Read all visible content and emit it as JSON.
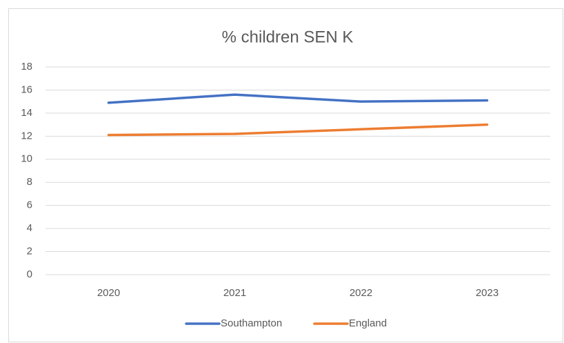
{
  "chart_data": {
    "type": "line",
    "title": "% children SEN K",
    "categories": [
      "2020",
      "2021",
      "2022",
      "2023"
    ],
    "series": [
      {
        "name": "Southampton",
        "color": "#4472c4",
        "values": [
          14.9,
          15.6,
          15.0,
          15.1
        ]
      },
      {
        "name": "England",
        "color": "#ed7d31",
        "values": [
          12.1,
          12.2,
          12.6,
          13.0
        ]
      }
    ],
    "ylim": [
      0,
      18
    ],
    "yticks": [
      0,
      2,
      4,
      6,
      8,
      10,
      12,
      14,
      16,
      18
    ],
    "grid": true,
    "legend": "bottom"
  }
}
